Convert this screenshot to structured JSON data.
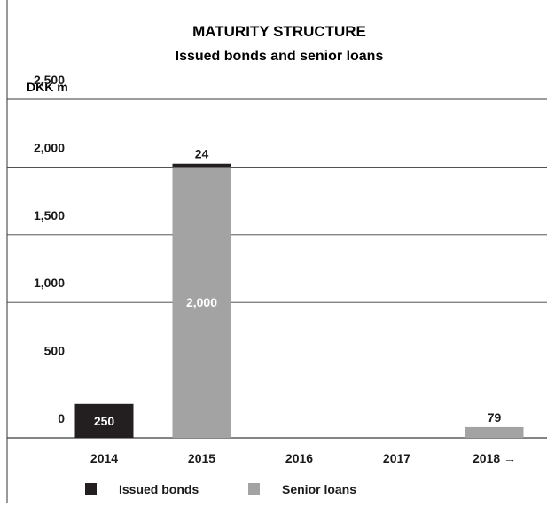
{
  "chart_data": {
    "type": "bar",
    "stacked": true,
    "title": "MATURITY STRUCTURE",
    "subtitle": "Issued bonds and senior loans",
    "ylabel": "DKK m",
    "categories": [
      "2014",
      "2015",
      "2016",
      "2017",
      "2018 →"
    ],
    "ylim": [
      0,
      2500
    ],
    "yticks": [
      {
        "value": 0,
        "label": "0"
      },
      {
        "value": 500,
        "label": "500"
      },
      {
        "value": 1000,
        "label": "1,000"
      },
      {
        "value": 1500,
        "label": "1,500"
      },
      {
        "value": 2000,
        "label": "2,000"
      },
      {
        "value": 2500,
        "label": "2,500"
      }
    ],
    "grid": true,
    "legend_position": "bottom",
    "series": [
      {
        "name": "Senior loans",
        "color": "#a3a3a3",
        "label_color": "#ffffff",
        "values": [
          0,
          2000,
          0,
          0,
          79
        ],
        "labels": [
          "",
          "2,000",
          "",
          "",
          "79"
        ],
        "label_position": [
          "",
          "inside",
          "",
          "",
          "above"
        ]
      },
      {
        "name": "Issued bonds",
        "color": "#231f20",
        "label_color": "#ffffff",
        "values": [
          250,
          24,
          0,
          0,
          0
        ],
        "labels": [
          "250",
          "24",
          "",
          "",
          ""
        ],
        "label_position": [
          "inside",
          "above",
          "",
          "",
          ""
        ]
      }
    ]
  }
}
